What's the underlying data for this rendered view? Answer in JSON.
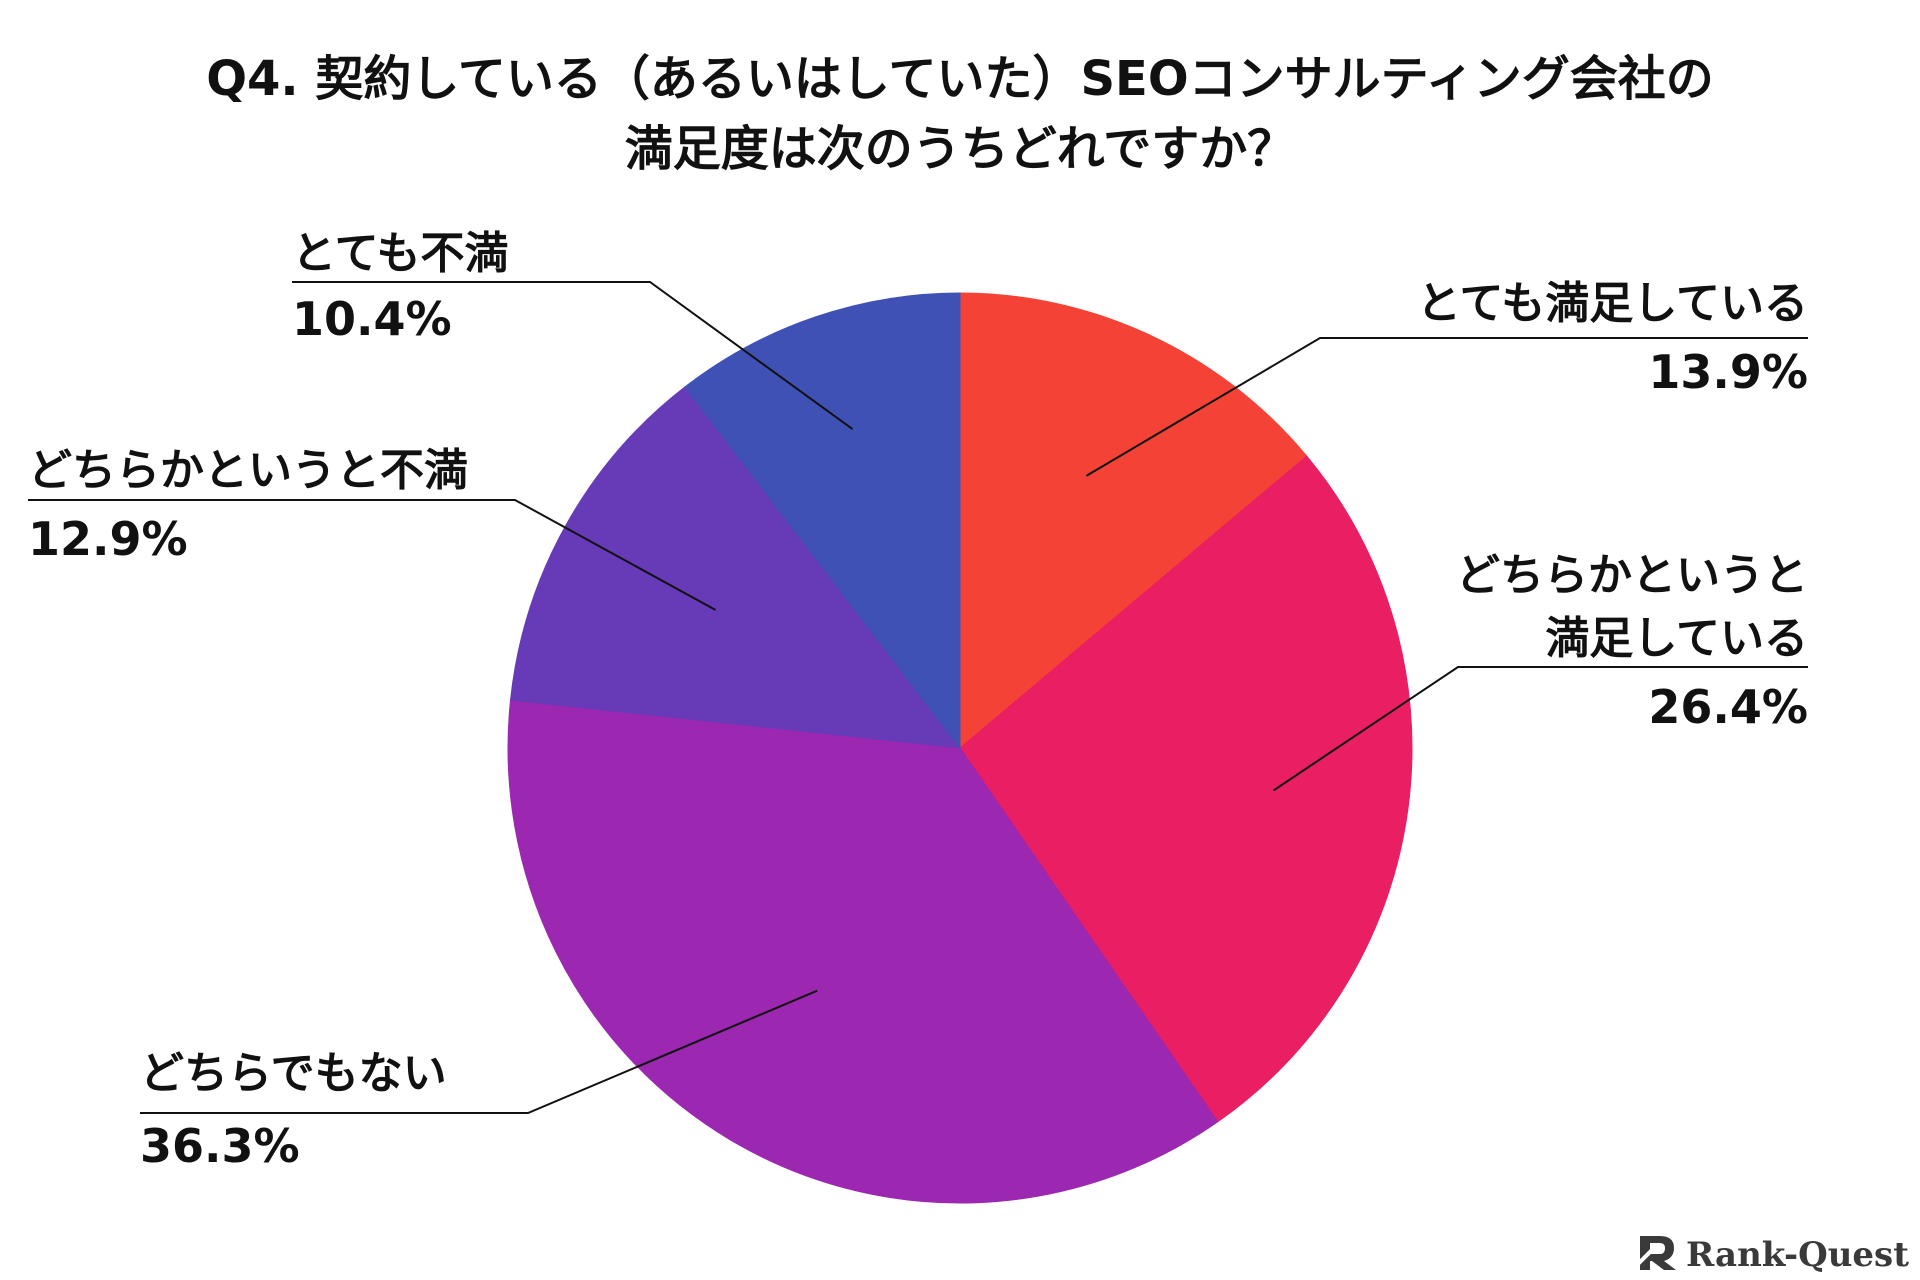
{
  "chart_data": {
    "type": "pie",
    "title_lines": [
      "Q4. 契約している（あるいはしていた）SEOコンサルティング会社の",
      "満足度は次のうちどれですか？"
    ],
    "unit": "%",
    "slices": [
      {
        "label_lines": [
          "とても満足している"
        ],
        "value": 13.9,
        "value_label": "13.9%",
        "color": "#F44336"
      },
      {
        "label_lines": [
          "どちらかというと",
          "満足している"
        ],
        "value": 26.4,
        "value_label": "26.4%",
        "color": "#E91E63"
      },
      {
        "label_lines": [
          "どちらでもない"
        ],
        "value": 36.3,
        "value_label": "36.3%",
        "color": "#9C27B0"
      },
      {
        "label_lines": [
          "どちらかというと不満"
        ],
        "value": 12.9,
        "value_label": "12.9%",
        "color": "#673AB7"
      },
      {
        "label_lines": [
          "とても不満"
        ],
        "value": 10.4,
        "value_label": "10.4%",
        "color": "#3F51B5"
      }
    ],
    "start_angle": "12 o'clock",
    "direction": "clockwise",
    "legend": "none (callout labels)"
  },
  "brand": {
    "logo_text": "Rank-Quest",
    "logo_icon": "rank-quest-logo-icon",
    "logo_color": "#3a3a3a"
  }
}
